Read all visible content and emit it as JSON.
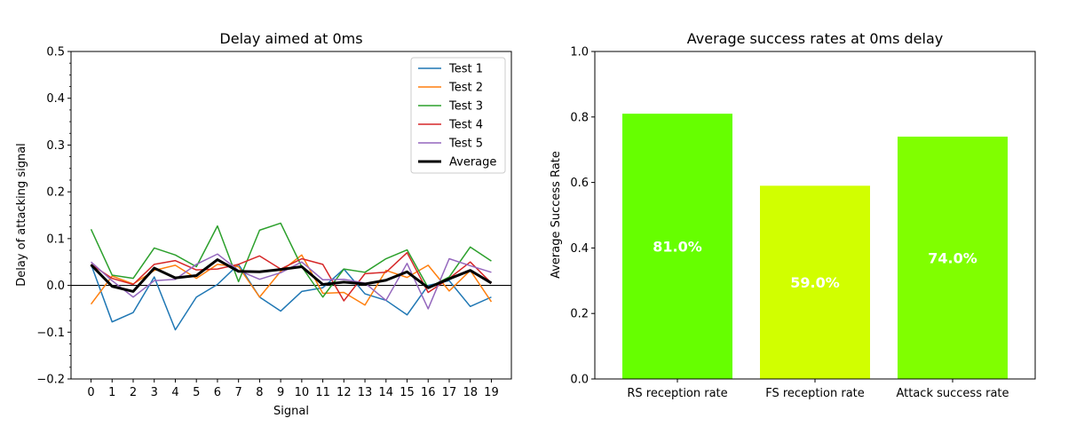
{
  "chart_data": [
    {
      "type": "line",
      "title": "Delay aimed at 0ms",
      "xlabel": "Signal",
      "ylabel": "Delay of attacking signal",
      "xlim": [
        -0.95,
        19.95
      ],
      "ylim": [
        -0.2,
        0.5
      ],
      "x": [
        0,
        1,
        2,
        3,
        4,
        5,
        6,
        7,
        8,
        9,
        10,
        11,
        12,
        13,
        14,
        15,
        16,
        17,
        18,
        19
      ],
      "xticks": [
        "0",
        "1",
        "2",
        "3",
        "4",
        "5",
        "6",
        "7",
        "8",
        "9",
        "10",
        "11",
        "12",
        "13",
        "14",
        "15",
        "16",
        "17",
        "18",
        "19"
      ],
      "yticks": [
        "−0.2",
        "−0.1",
        "0.0",
        "0.1",
        "0.2",
        "0.3",
        "0.4",
        "0.5"
      ],
      "ytick_values": [
        -0.2,
        -0.1,
        0.0,
        0.1,
        0.2,
        0.3,
        0.4,
        0.5
      ],
      "hline": 0,
      "legend_position": "top-right",
      "series": [
        {
          "name": "Test 1",
          "color": "#1f77b4",
          "values": [
            0.045,
            -0.078,
            -0.058,
            0.018,
            -0.095,
            -0.025,
            0.002,
            0.045,
            -0.025,
            -0.055,
            -0.013,
            -0.005,
            0.035,
            -0.018,
            -0.032,
            -0.063,
            0.0,
            0.01,
            -0.045,
            -0.025
          ]
        },
        {
          "name": "Test 2",
          "color": "#ff7f0e",
          "values": [
            -0.04,
            0.02,
            0.003,
            0.032,
            0.043,
            0.015,
            0.045,
            0.04,
            -0.025,
            0.03,
            0.065,
            -0.017,
            -0.015,
            -0.042,
            0.032,
            0.017,
            0.043,
            -0.012,
            0.032,
            -0.035
          ]
        },
        {
          "name": "Test 3",
          "color": "#2ca02c",
          "values": [
            0.12,
            0.022,
            0.015,
            0.08,
            0.065,
            0.04,
            0.127,
            0.008,
            0.118,
            0.133,
            0.04,
            -0.025,
            0.035,
            0.028,
            0.057,
            0.076,
            -0.005,
            0.018,
            0.082,
            0.052
          ]
        },
        {
          "name": "Test 4",
          "color": "#d62728",
          "values": [
            0.045,
            0.015,
            0.002,
            0.045,
            0.053,
            0.033,
            0.035,
            0.045,
            0.063,
            0.035,
            0.057,
            0.045,
            -0.033,
            0.025,
            0.028,
            0.07,
            -0.015,
            0.015,
            0.05,
            0.005
          ]
        },
        {
          "name": "Test 5",
          "color": "#9467bd",
          "values": [
            0.05,
            0.01,
            -0.025,
            0.01,
            0.013,
            0.045,
            0.067,
            0.032,
            0.013,
            0.027,
            0.05,
            0.012,
            0.013,
            0.005,
            -0.032,
            0.047,
            -0.05,
            0.057,
            0.042,
            0.028
          ]
        },
        {
          "name": "Average",
          "color": "#000000",
          "linewidth": 3,
          "values": [
            0.044,
            -0.002,
            -0.013,
            0.037,
            0.016,
            0.021,
            0.055,
            0.03,
            0.029,
            0.034,
            0.04,
            0.002,
            0.007,
            0.003,
            0.011,
            0.029,
            -0.005,
            0.014,
            0.032,
            0.005
          ]
        }
      ]
    },
    {
      "type": "bar",
      "title": "Average success rates at 0ms delay",
      "xlabel": "",
      "ylabel": "Average Success Rate",
      "ylim": [
        0,
        1.0
      ],
      "yticks": [
        "0.0",
        "0.2",
        "0.4",
        "0.6",
        "0.8",
        "1.0"
      ],
      "ytick_values": [
        0,
        0.2,
        0.4,
        0.6,
        0.8,
        1.0
      ],
      "categories": [
        "RS reception rate",
        "FS reception rate",
        "Attack success rate"
      ],
      "values": [
        0.81,
        0.59,
        0.74
      ],
      "data_labels": [
        "81.0%",
        "59.0%",
        "74.0%"
      ],
      "colors": [
        "#66ff00",
        "#d1ff00",
        "#80ff00"
      ]
    }
  ]
}
